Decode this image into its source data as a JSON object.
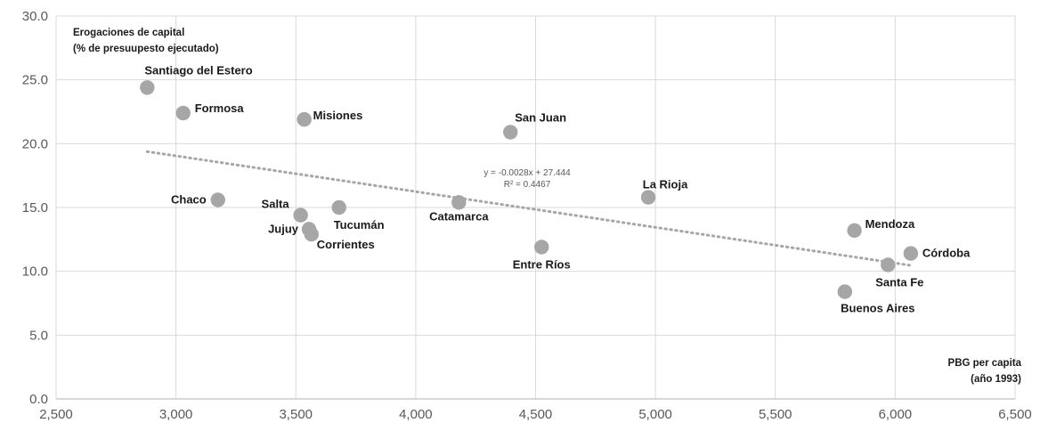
{
  "chart_data": {
    "type": "scatter",
    "ylabel_lines": [
      "Erogaciones de capital",
      "(% de presuupesto ejecutado)"
    ],
    "xlabel_lines": [
      "PBG per capita",
      "(año 1993)"
    ],
    "xlim": [
      2500,
      6500
    ],
    "ylim": [
      0,
      30
    ],
    "x_ticks": [
      2500,
      3000,
      3500,
      4000,
      4500,
      5000,
      5500,
      6000,
      6500
    ],
    "x_tick_labels": [
      "2,500",
      "3,000",
      "3,500",
      "4,000",
      "4,500",
      "5,000",
      "5,500",
      "6,000",
      "6,500"
    ],
    "y_ticks": [
      0,
      5,
      10,
      15,
      20,
      25,
      30
    ],
    "y_tick_labels": [
      "0.0",
      "5.0",
      "10.0",
      "15.0",
      "20.0",
      "25.0",
      "30.0"
    ],
    "grid": "vertical-and-horizontal",
    "points": [
      {
        "label": "Santiago del Estero",
        "x": 2880,
        "y": 24.4
      },
      {
        "label": "Formosa",
        "x": 3030,
        "y": 22.4
      },
      {
        "label": "Misiones",
        "x": 3535,
        "y": 21.9
      },
      {
        "label": "San Juan",
        "x": 4395,
        "y": 20.9
      },
      {
        "label": "Chaco",
        "x": 3175,
        "y": 15.6
      },
      {
        "label": "Salta",
        "x": 3520,
        "y": 14.4
      },
      {
        "label": "Tucumán",
        "x": 3680,
        "y": 15.0
      },
      {
        "label": "Jujuy",
        "x": 3555,
        "y": 13.3
      },
      {
        "label": "Corrientes",
        "x": 3565,
        "y": 12.9
      },
      {
        "label": "Catamarca",
        "x": 4180,
        "y": 15.4
      },
      {
        "label": "Entre Ríos",
        "x": 4525,
        "y": 11.9
      },
      {
        "label": "La Rioja",
        "x": 4970,
        "y": 15.8
      },
      {
        "label": "Mendoza",
        "x": 5830,
        "y": 13.2
      },
      {
        "label": "Córdoba",
        "x": 6065,
        "y": 11.4
      },
      {
        "label": "Santa Fe",
        "x": 5970,
        "y": 10.5
      },
      {
        "label": "Buenos Aires",
        "x": 5790,
        "y": 8.4
      }
    ],
    "trendline": {
      "type": "linear",
      "slope": -0.0028,
      "intercept": 27.444,
      "x_range": [
        2880,
        6065
      ],
      "equation_text": "y = -0.0028x + 27.444",
      "r2_text": "R² = 0.4467"
    },
    "colors": {
      "marker": "#a6a6a6",
      "trendline": "#a6a6a6",
      "grid": "#d9d9d9",
      "axis": "#bfbfbf"
    }
  }
}
